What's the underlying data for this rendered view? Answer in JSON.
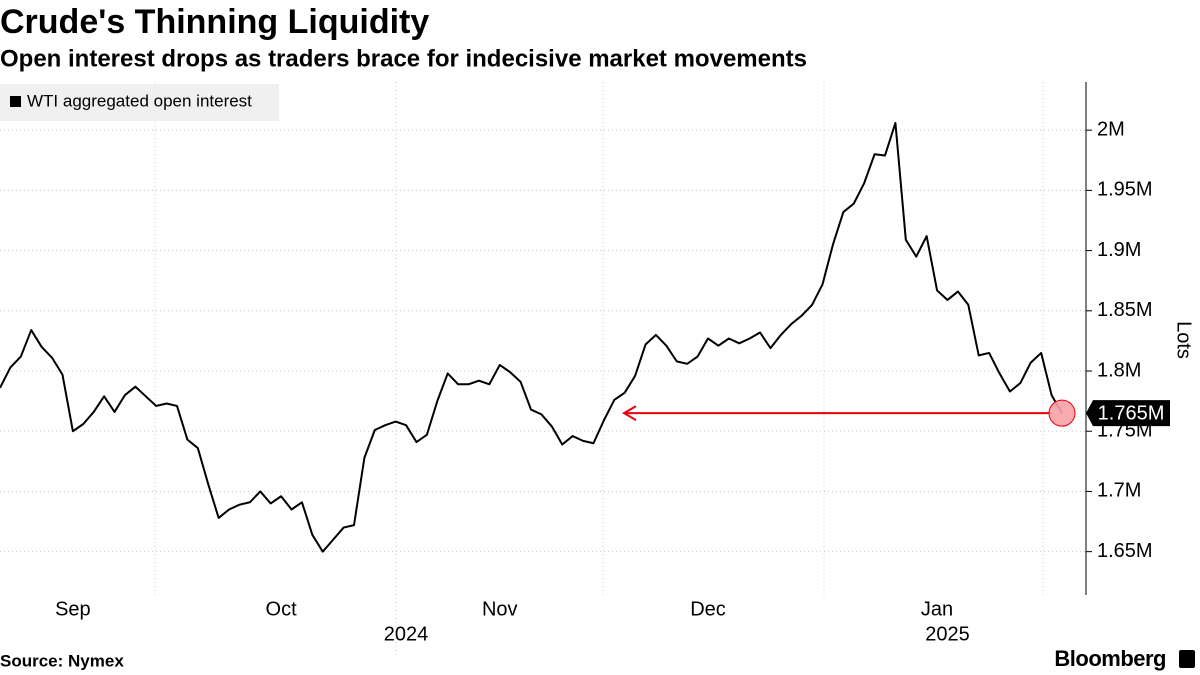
{
  "chart_data": {
    "type": "line",
    "title": "Crude's Thinning Liquidity",
    "subtitle": "Open interest drops as traders brace for indecisive market movements",
    "y_axis_label": "Lots",
    "source": "Source: Nymex",
    "brand": "Bloomberg",
    "categories": [
      null,
      null,
      null,
      null,
      null,
      null,
      null,
      "Sep",
      null,
      null,
      null,
      null,
      null,
      null,
      null,
      null,
      null,
      null,
      null,
      null,
      null,
      null,
      null,
      null,
      null,
      null,
      null,
      "Oct",
      null,
      null,
      null,
      null,
      null,
      null,
      null,
      null,
      null,
      null,
      null,
      null,
      null,
      null,
      null,
      null,
      null,
      null,
      null,
      null,
      "Nov",
      null,
      null,
      null,
      null,
      null,
      null,
      null,
      null,
      null,
      null,
      null,
      null,
      null,
      null,
      null,
      null,
      null,
      null,
      null,
      "Dec",
      null,
      null,
      null,
      null,
      null,
      null,
      null,
      null,
      null,
      null,
      null,
      null,
      null,
      null,
      null,
      null,
      null,
      null,
      null,
      null,
      null,
      "Jan",
      null,
      null,
      null,
      null,
      null,
      null,
      null,
      null,
      null,
      null,
      null,
      null
    ],
    "years": [
      null,
      null,
      null,
      null,
      null,
      null,
      null,
      null,
      null,
      null,
      null,
      null,
      null,
      null,
      null,
      null,
      null,
      null,
      null,
      null,
      null,
      null,
      null,
      null,
      null,
      null,
      null,
      null,
      null,
      null,
      null,
      null,
      null,
      null,
      null,
      null,
      null,
      null,
      null,
      "2024",
      null,
      null,
      null,
      null,
      null,
      null,
      null,
      null,
      null,
      null,
      null,
      null,
      null,
      null,
      null,
      null,
      null,
      null,
      null,
      null,
      null,
      null,
      null,
      null,
      null,
      null,
      null,
      null,
      null,
      null,
      null,
      null,
      null,
      null,
      null,
      null,
      null,
      null,
      null,
      null,
      null,
      null,
      null,
      null,
      null,
      null,
      null,
      null,
      null,
      null,
      null,
      "2025",
      null,
      null,
      null,
      null,
      null,
      null,
      null,
      null,
      null,
      null,
      null
    ],
    "series": [
      {
        "name": "WTI aggregated open interest",
        "color": "#000000",
        "values": [
          1786000,
          1803000,
          1812000,
          1834000,
          1820000,
          1811000,
          1797000,
          1750000,
          1756000,
          1766000,
          1779000,
          1766000,
          1780000,
          1787000,
          1779000,
          1771000,
          1773000,
          1771000,
          1743000,
          1736000,
          1706000,
          1678000,
          1685000,
          1689000,
          1691000,
          1700000,
          1690000,
          1696000,
          1685000,
          1691000,
          1664000,
          1650000,
          1660000,
          1670000,
          1672000,
          1728000,
          1751000,
          1755000,
          1758000,
          1755000,
          1741000,
          1747000,
          1775000,
          1798000,
          1789000,
          1789000,
          1792000,
          1789000,
          1805000,
          1799000,
          1791000,
          1768000,
          1764000,
          1754000,
          1739000,
          1746000,
          1742000,
          1740000,
          1759000,
          1776000,
          1782000,
          1796000,
          1822000,
          1830000,
          1821000,
          1808000,
          1806000,
          1812000,
          1827000,
          1821000,
          1827000,
          1823000,
          1827000,
          1832000,
          1819000,
          1830000,
          1839000,
          1846000,
          1855000,
          1872000,
          1905000,
          1932000,
          1939000,
          1956000,
          1980000,
          1979000,
          2006000,
          1909000,
          1895000,
          1912000,
          1867000,
          1859000,
          1866000,
          1855000,
          1813000,
          1815000,
          1798000,
          1783000,
          1790000,
          1807000,
          1815000,
          1780000,
          1765000
        ],
        "value_labels": [
          null,
          null,
          null,
          null,
          null,
          null,
          null,
          null,
          null,
          null,
          null,
          null,
          null,
          null,
          null,
          null,
          null,
          null,
          null,
          null,
          null,
          null,
          null,
          null,
          null,
          null,
          null,
          null,
          null,
          null,
          null,
          null,
          null,
          null,
          null,
          null,
          null,
          null,
          null,
          null,
          null,
          null,
          null,
          null,
          null,
          null,
          null,
          null,
          null,
          null,
          null,
          null,
          null,
          null,
          null,
          null,
          null,
          null,
          null,
          null,
          null,
          null,
          null,
          null,
          null,
          null,
          null,
          null,
          null,
          null,
          null,
          null,
          null,
          null,
          null,
          null,
          null,
          null,
          null,
          null,
          null,
          null,
          null,
          null,
          null,
          null,
          null,
          null,
          null,
          null,
          null,
          null,
          null,
          null,
          null,
          null,
          null,
          null,
          null,
          null,
          null,
          null,
          "1.765M"
        ]
      }
    ],
    "ylim": [
      1614000,
      2040000
    ],
    "yticks": [
      {
        "value": 1650000,
        "label": "1.65M"
      },
      {
        "value": 1700000,
        "label": "1.7M"
      },
      {
        "value": 1750000,
        "label": "1.75M"
      },
      {
        "value": 1800000,
        "label": "1.8M"
      },
      {
        "value": 1850000,
        "label": "1.85M"
      },
      {
        "value": 1900000,
        "label": "1.9M"
      },
      {
        "value": 1950000,
        "label": "1.95M"
      },
      {
        "value": 2000000,
        "label": "2M"
      }
    ],
    "grid": true,
    "legend": "top-left",
    "annotation_color": "#e8000b"
  }
}
